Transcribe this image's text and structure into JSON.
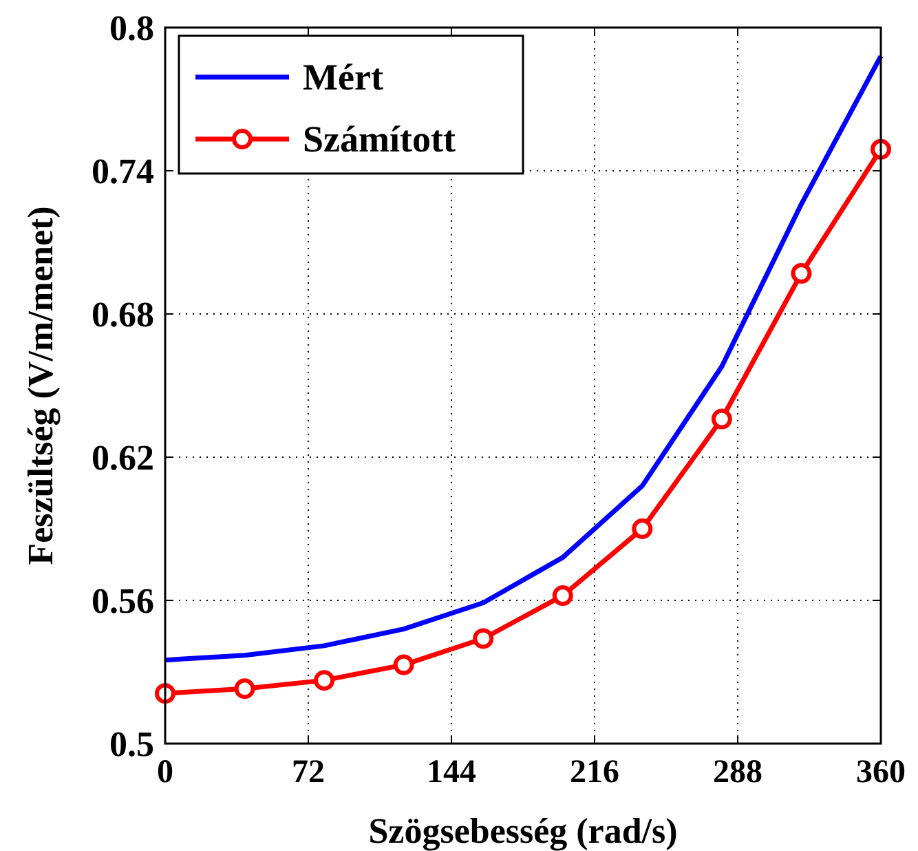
{
  "chart_data": {
    "type": "line",
    "xlabel": "Szögsebesség (rad/s)",
    "ylabel": "Feszültség (V/m/menet)",
    "x": [
      0,
      40,
      80,
      120,
      160,
      200,
      240,
      280,
      320,
      360
    ],
    "series": [
      {
        "name": "Mért",
        "color": "#0000ff",
        "values": [
          0.535,
          0.537,
          0.541,
          0.548,
          0.559,
          0.578,
          0.608,
          0.658,
          0.726,
          0.788
        ],
        "marker": "none"
      },
      {
        "name": "Számított",
        "color": "#ff0000",
        "values": [
          0.521,
          0.523,
          0.5265,
          0.533,
          0.544,
          0.562,
          0.59,
          0.636,
          0.697,
          0.749
        ],
        "marker": "circle"
      }
    ],
    "xlim": [
      0,
      360
    ],
    "xticks": [
      0,
      72,
      144,
      216,
      288,
      360
    ],
    "ylim": [
      0.5,
      0.8
    ],
    "yticks": [
      0.5,
      0.56,
      0.62,
      0.68,
      0.74,
      0.8
    ],
    "grid": true,
    "legend": "top left",
    "line_style": "solid"
  }
}
